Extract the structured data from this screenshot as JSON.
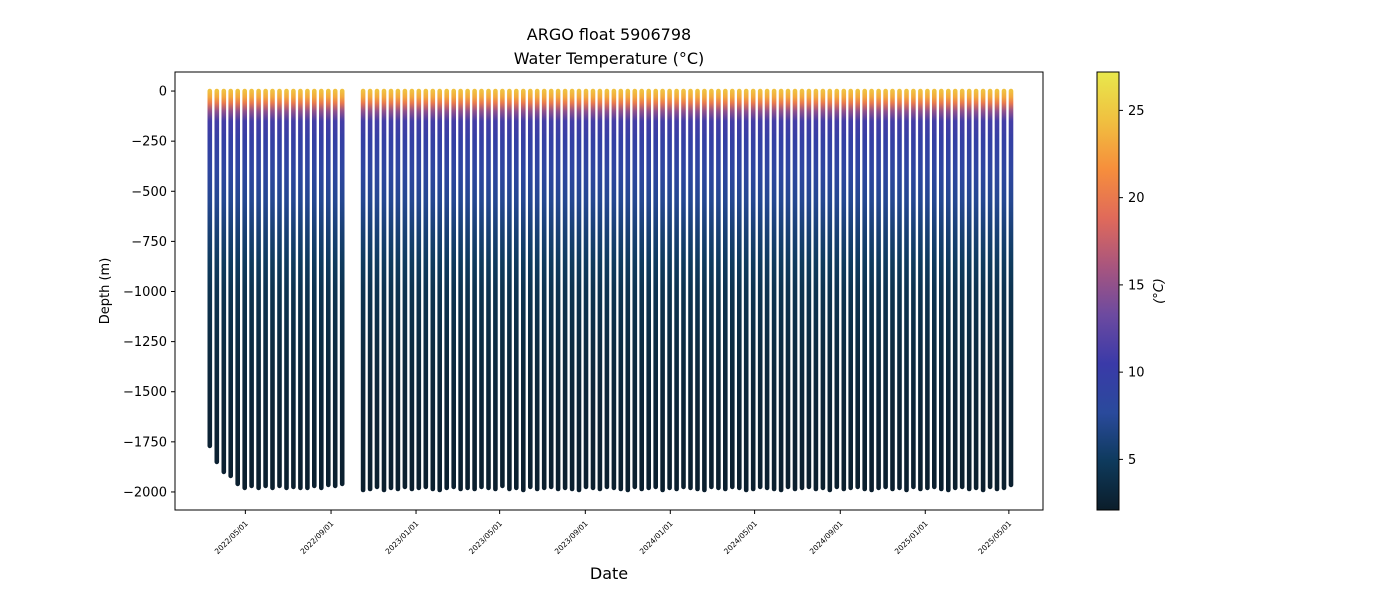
{
  "chart_data": {
    "type": "scatter",
    "title_lines": [
      "ARGO float 5906798",
      "Water Temperature (°C)"
    ],
    "xlabel": "Date",
    "ylabel": "Depth (m)",
    "ylim": [
      -2090,
      95
    ],
    "yticks": [
      0,
      -250,
      -500,
      -750,
      -1000,
      -1250,
      -1500,
      -1750,
      -2000
    ],
    "ytick_labels": [
      "0",
      "−250",
      "−500",
      "−750",
      "−1000",
      "−1250",
      "−1500",
      "−1750",
      "−2000"
    ],
    "xlim": [
      "2022-01-20",
      "2025-06-19"
    ],
    "xticks": [
      "2022/05/01",
      "2022/09/01",
      "2023/01/01",
      "2023/05/01",
      "2023/09/01",
      "2024/01/01",
      "2024/05/01",
      "2024/09/01",
      "2025/01/01",
      "2025/05/01"
    ],
    "grid": false,
    "colorbar": {
      "label": "(°C)",
      "range": [
        2.1,
        27.2
      ],
      "ticks": [
        5,
        10,
        15,
        20,
        25
      ],
      "colormap": [
        "#0b1d2a",
        "#0e3a5c",
        "#2a4a9c",
        "#3a3aa8",
        "#6c4aa0",
        "#a8557e",
        "#e06a5a",
        "#f68e3c",
        "#f0c040",
        "#e8e84c"
      ]
    },
    "profiles": {
      "first_date": "2022-03-11",
      "interval_days": 10,
      "gap_after_index": 19,
      "gap_days": 20,
      "count": 114,
      "max_depths": [
        -1770,
        -1850,
        -1900,
        -1920,
        -1960,
        -1980,
        -1970,
        -1980,
        -1970,
        -1980,
        -1970,
        -1980,
        -1975,
        -1980,
        -1980,
        -1970,
        -1980,
        -1965,
        -1970,
        -1960,
        -1990,
        -1985,
        -1975,
        -1990,
        -1980,
        -1985,
        -1975,
        -1985,
        -1980,
        -1975,
        -1985,
        -1990,
        -1980,
        -1975,
        -1985,
        -1980,
        -1985,
        -1975,
        -1980,
        -1985,
        -1970,
        -1985,
        -1980,
        -1990,
        -1975,
        -1985,
        -1980,
        -1975,
        -1985,
        -1980,
        -1985,
        -1990,
        -1975,
        -1980,
        -1985,
        -1975,
        -1980,
        -1985,
        -1990,
        -1975,
        -1985,
        -1980,
        -1975,
        -1990,
        -1980,
        -1985,
        -1975,
        -1980,
        -1985,
        -1990,
        -1975,
        -1980,
        -1985,
        -1975,
        -1980,
        -1990,
        -1985,
        -1975,
        -1980,
        -1985,
        -1990,
        -1975,
        -1985,
        -1980,
        -1975,
        -1985,
        -1980,
        -1990,
        -1975,
        -1985,
        -1980,
        -1975,
        -1985,
        -1990,
        -1980,
        -1975,
        -1985,
        -1980,
        -1990,
        -1975,
        -1985,
        -1980,
        -1975,
        -1985,
        -1990,
        -1980,
        -1975,
        -1985,
        -1980,
        -1990,
        -1975,
        -1985,
        -1980,
        -1965
      ],
      "temperature_profile": {
        "depths": [
          0,
          -30,
          -60,
          -100,
          -150,
          -250,
          -400,
          -550,
          -700,
          -850,
          -1000,
          -1300,
          -1600,
          -2000
        ],
        "temps": [
          24.5,
          23.0,
          20.0,
          15.0,
          11.0,
          9.5,
          8.3,
          7.2,
          6.0,
          5.0,
          4.2,
          3.4,
          2.8,
          2.3
        ]
      }
    }
  }
}
